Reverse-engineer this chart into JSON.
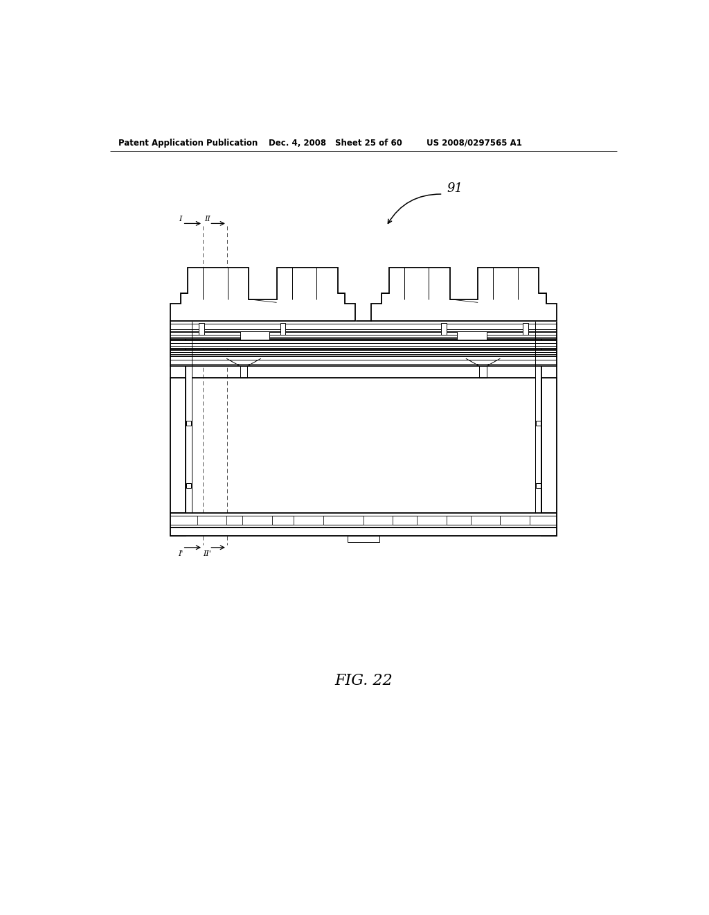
{
  "bg_color": "#ffffff",
  "header_text": "Patent Application Publication",
  "header_date": "Dec. 4, 2008",
  "header_sheet": "Sheet 25 of 60",
  "header_patent": "US 2008/0297565 A1",
  "fig_label": "FIG. 22",
  "ref_num": "91"
}
